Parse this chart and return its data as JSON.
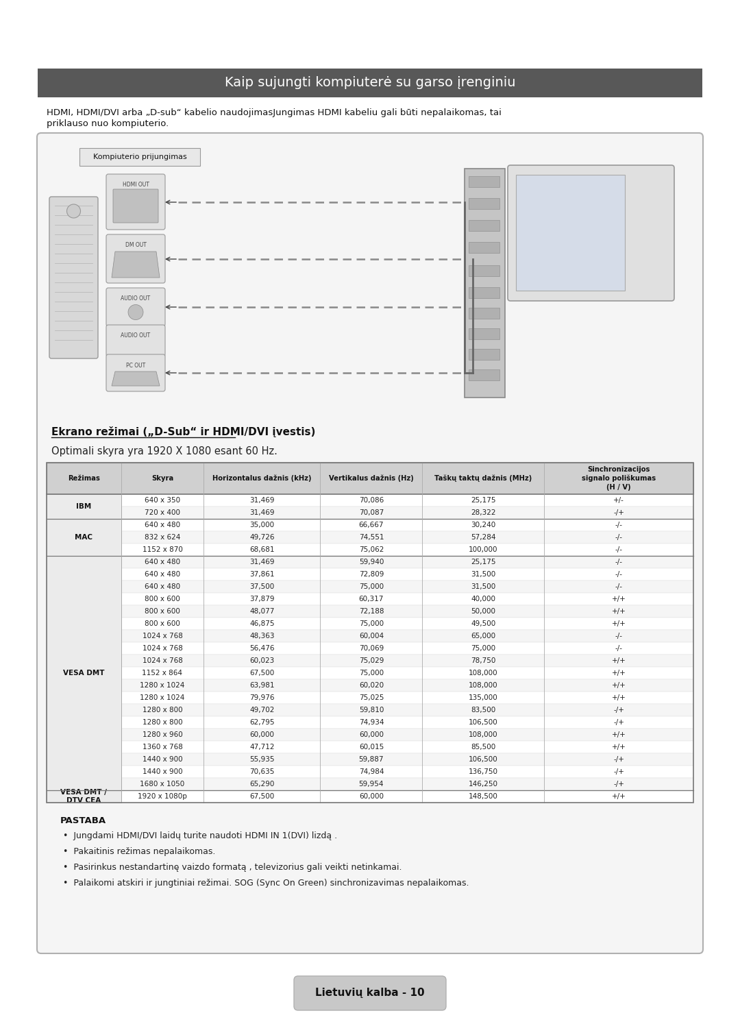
{
  "title": "Kaip sujungti kompiuterė su garso įrenginiu",
  "title_bg": "#585858",
  "title_fg": "#ffffff",
  "intro_line1": "HDMI, HDMI/DVI arba „D-sub“ kabelio naudojimasJungimas HDMI kabeliu gali būti nepalaikomas, tai",
  "intro_line2": "priklauso nuo kompiuterio.",
  "diagram_label": "Kompiuterio prijungimas",
  "section_title": "Ekrano režimai („D-Sub“ ir HDMI/DVI įvestis)",
  "optimal_text": "Optimali skyra yra 1920 X 1080 esant 60 Hz.",
  "table_headers": [
    "Režimas",
    "Skyra",
    "Horizontalus dažnis (kHz)",
    "Vertikalus dažnis (Hz)",
    "Taškų taktų dažnis (MHz)",
    "Sinchronizacijos\nsignalo poliškumas\n(H / V)"
  ],
  "table_data": [
    [
      "IBM",
      "640 x 350",
      "31,469",
      "70,086",
      "25,175",
      "+/-"
    ],
    [
      "IBM",
      "720 x 400",
      "31,469",
      "70,087",
      "28,322",
      "-/+"
    ],
    [
      "MAC",
      "640 x 480",
      "35,000",
      "66,667",
      "30,240",
      "-/-"
    ],
    [
      "MAC",
      "832 x 624",
      "49,726",
      "74,551",
      "57,284",
      "-/-"
    ],
    [
      "MAC",
      "1152 x 870",
      "68,681",
      "75,062",
      "100,000",
      "-/-"
    ],
    [
      "VESA DMT",
      "640 x 480",
      "31,469",
      "59,940",
      "25,175",
      "-/-"
    ],
    [
      "VESA DMT",
      "640 x 480",
      "37,861",
      "72,809",
      "31,500",
      "-/-"
    ],
    [
      "VESA DMT",
      "640 x 480",
      "37,500",
      "75,000",
      "31,500",
      "-/-"
    ],
    [
      "VESA DMT",
      "800 x 600",
      "37,879",
      "60,317",
      "40,000",
      "+/+"
    ],
    [
      "VESA DMT",
      "800 x 600",
      "48,077",
      "72,188",
      "50,000",
      "+/+"
    ],
    [
      "VESA DMT",
      "800 x 600",
      "46,875",
      "75,000",
      "49,500",
      "+/+"
    ],
    [
      "VESA DMT",
      "1024 x 768",
      "48,363",
      "60,004",
      "65,000",
      "-/-"
    ],
    [
      "VESA DMT",
      "1024 x 768",
      "56,476",
      "70,069",
      "75,000",
      "-/-"
    ],
    [
      "VESA DMT",
      "1024 x 768",
      "60,023",
      "75,029",
      "78,750",
      "+/+"
    ],
    [
      "VESA DMT",
      "1152 x 864",
      "67,500",
      "75,000",
      "108,000",
      "+/+"
    ],
    [
      "VESA DMT",
      "1280 x 1024",
      "63,981",
      "60,020",
      "108,000",
      "+/+"
    ],
    [
      "VESA DMT",
      "1280 x 1024",
      "79,976",
      "75,025",
      "135,000",
      "+/+"
    ],
    [
      "VESA DMT",
      "1280 x 800",
      "49,702",
      "59,810",
      "83,500",
      "-/+"
    ],
    [
      "VESA DMT",
      "1280 x 800",
      "62,795",
      "74,934",
      "106,500",
      "-/+"
    ],
    [
      "VESA DMT",
      "1280 x 960",
      "60,000",
      "60,000",
      "108,000",
      "+/+"
    ],
    [
      "VESA DMT",
      "1360 x 768",
      "47,712",
      "60,015",
      "85,500",
      "+/+"
    ],
    [
      "VESA DMT",
      "1440 x 900",
      "55,935",
      "59,887",
      "106,500",
      "-/+"
    ],
    [
      "VESA DMT",
      "1440 x 900",
      "70,635",
      "74,984",
      "136,750",
      "-/+"
    ],
    [
      "VESA DMT",
      "1680 x 1050",
      "65,290",
      "59,954",
      "146,250",
      "-/+"
    ],
    [
      "VESA DMT /\nDTV CEA",
      "1920 x 1080p",
      "67,500",
      "60,000",
      "148,500",
      "+/+"
    ]
  ],
  "pastaba_title": "PASTABA",
  "pastaba_bullets": [
    "Jungdami HDMI/DVI laidų turite naudoti HDMI IN 1(DVI) lizdą .",
    "Pakaitinis režimas nepalaikomas.",
    "Pasirinkus nestandartinę vaizdo formatą , televizorius gali veikti netinkamai.",
    "Palaikomi atskiri ir jungtiniai režimai. SOG (Sync On Green) sinchronizavimas nepalaikomas."
  ],
  "footer_text": "Lietuvių kalba - 10",
  "page_bg": "#ffffff"
}
